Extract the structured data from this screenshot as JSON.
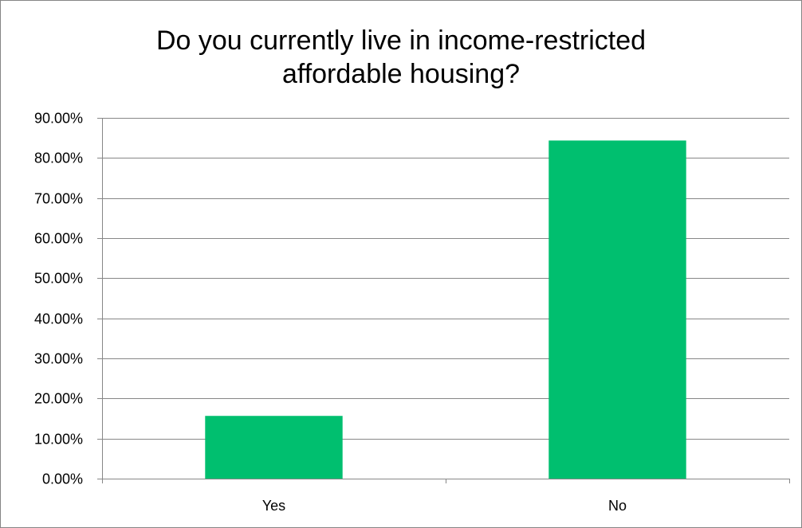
{
  "chart_data": {
    "type": "bar",
    "title_lines": [
      "Do you currently live in income-restricted",
      "affordable housing?"
    ],
    "categories": [
      "Yes",
      "No"
    ],
    "values": [
      15.65,
      84.35
    ],
    "ylim": [
      0,
      90
    ],
    "ytick_step": 10,
    "ytick_labels": [
      "0.00%",
      "10.00%",
      "20.00%",
      "30.00%",
      "40.00%",
      "50.00%",
      "60.00%",
      "70.00%",
      "80.00%",
      "90.00%"
    ],
    "xlabel": "",
    "ylabel": "",
    "grid": true,
    "legend": "none",
    "bar_color": "#00BF6F"
  }
}
